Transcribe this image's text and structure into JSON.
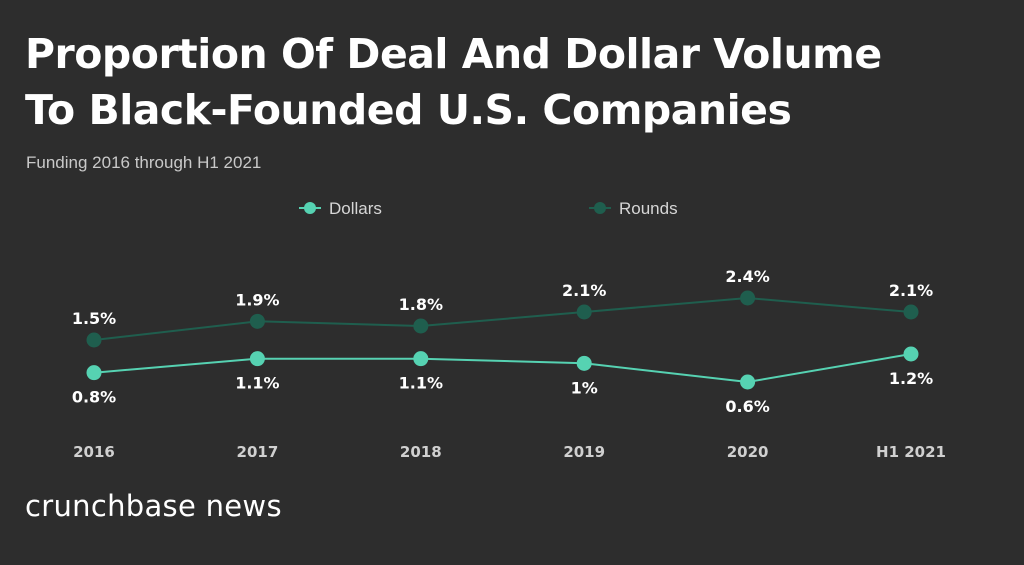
{
  "header": {
    "title_line1": "Proportion Of Deal And Dollar Volume",
    "title_line2": "To Black-Founded U.S. Companies",
    "subtitle": "Funding 2016 through H1 2021"
  },
  "footer": {
    "brand": "crunchbase news"
  },
  "colors": {
    "background": "#2d2d2d",
    "dollars": "#56d2b2",
    "rounds": "#1f5e4e"
  },
  "chart_data": {
    "type": "line",
    "title": "Proportion Of Deal And Dollar Volume To Black-Founded U.S. Companies",
    "subtitle": "Funding 2016 through H1 2021",
    "categories": [
      "2016",
      "2017",
      "2018",
      "2019",
      "2020",
      "H1 2021"
    ],
    "legend_position": "top-center",
    "grid": false,
    "ylim": [
      0,
      3
    ],
    "series": [
      {
        "name": "Dollars",
        "values": [
          0.8,
          1.1,
          1.1,
          1.0,
          0.6,
          1.2
        ],
        "labels": [
          "0.8%",
          "1.1%",
          "1.1%",
          "1%",
          "0.6%",
          "1.2%"
        ],
        "color": "#56d2b2",
        "label_side": "below"
      },
      {
        "name": "Rounds",
        "values": [
          1.5,
          1.9,
          1.8,
          2.1,
          2.4,
          2.1
        ],
        "labels": [
          "1.5%",
          "1.9%",
          "1.8%",
          "2.1%",
          "2.4%",
          "2.1%"
        ],
        "color": "#1f5e4e",
        "label_side": "above"
      }
    ]
  }
}
